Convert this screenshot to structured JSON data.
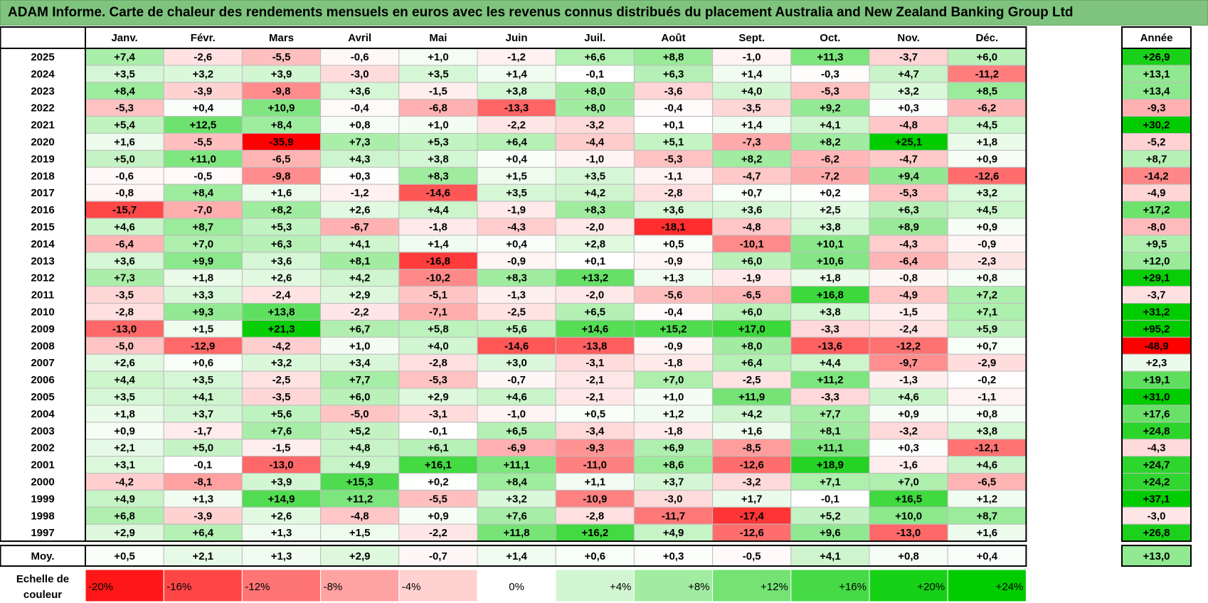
{
  "title": "ADAM Informe. Carte de chaleur des rendements mensuels en euros avec les revenus connus distribués du placement Australia and New Zealand Banking Group Ltd",
  "colors": {
    "negative_max": "#ff0000",
    "neutral": "#ffffff",
    "positive_max": "#00cc00",
    "title_bg": "#7ec47e"
  },
  "chart_data": {
    "type": "heatmap",
    "title": "ADAM Informe. Carte de chaleur des rendements mensuels en euros avec les revenus connus distribués du placement Australia and New Zealand Banking Group Ltd",
    "months": [
      "Janv.",
      "Févr.",
      "Mars",
      "Avril",
      "Mai",
      "Juin",
      "Juil.",
      "Août",
      "Sept.",
      "Oct.",
      "Nov.",
      "Déc."
    ],
    "year_column_label": "Année",
    "rows": [
      {
        "year": "2025",
        "values": [
          "+7,4",
          "-2,6",
          "-5,5",
          "-0,6",
          "+1,0",
          "-1,2",
          "+6,6",
          "+8,8",
          "-1,0",
          "+11,3",
          "-3,7",
          "+6,0"
        ],
        "annual": "+26,9"
      },
      {
        "year": "2024",
        "values": [
          "+3,5",
          "+3,2",
          "+3,9",
          "-3,0",
          "+3,5",
          "+1,4",
          "-0,1",
          "+6,3",
          "+1,4",
          "-0,3",
          "+4,7",
          "-11,2"
        ],
        "annual": "+13,1"
      },
      {
        "year": "2023",
        "values": [
          "+8,4",
          "-3,9",
          "-9,8",
          "+3,6",
          "-1,5",
          "+3,8",
          "+8,0",
          "-3,6",
          "+4,0",
          "-5,3",
          "+3,2",
          "+8,5"
        ],
        "annual": "+13,4"
      },
      {
        "year": "2022",
        "values": [
          "-5,3",
          "+0,4",
          "+10,9",
          "-0,4",
          "-6,8",
          "-13,3",
          "+8,0",
          "-0,4",
          "-3,5",
          "+9,2",
          "+0,3",
          "-6,2"
        ],
        "annual": "-9,3"
      },
      {
        "year": "2021",
        "values": [
          "+5,4",
          "+12,5",
          "+8,4",
          "+0,8",
          "+1,0",
          "-2,2",
          "-3,2",
          "+0,1",
          "+1,4",
          "+4,1",
          "-4,8",
          "+4,5"
        ],
        "annual": "+30,2"
      },
      {
        "year": "2020",
        "values": [
          "+1,6",
          "-5,5",
          "-35,9",
          "+7,3",
          "+5,3",
          "+6,4",
          "-4,4",
          "+5,1",
          "-7,3",
          "+8,2",
          "+25,1",
          "+1,8"
        ],
        "annual": "-5,2"
      },
      {
        "year": "2019",
        "values": [
          "+5,0",
          "+11,0",
          "-6,5",
          "+4,3",
          "+3,8",
          "+0,4",
          "-1,0",
          "-5,3",
          "+8,2",
          "-6,2",
          "-4,7",
          "+0,9"
        ],
        "annual": "+8,7"
      },
      {
        "year": "2018",
        "values": [
          "-0,6",
          "-0,5",
          "-9,8",
          "+0,3",
          "+8,3",
          "+1,5",
          "+3,5",
          "-1,1",
          "-4,7",
          "-7,2",
          "+9,4",
          "-12,6"
        ],
        "annual": "-14,2"
      },
      {
        "year": "2017",
        "values": [
          "-0,8",
          "+8,4",
          "+1,6",
          "-1,2",
          "-14,6",
          "+3,5",
          "+4,2",
          "-2,8",
          "+0,7",
          "+0,2",
          "-5,3",
          "+3,2"
        ],
        "annual": "-4,9"
      },
      {
        "year": "2016",
        "values": [
          "-15,7",
          "-7,0",
          "+8,2",
          "+2,6",
          "+4,4",
          "-1,9",
          "+8,3",
          "+3,6",
          "+3,6",
          "+2,5",
          "+6,3",
          "+4,5"
        ],
        "annual": "+17,2"
      },
      {
        "year": "2015",
        "values": [
          "+4,6",
          "+8,7",
          "+5,3",
          "-6,7",
          "-1,8",
          "-4,3",
          "-2,0",
          "-18,1",
          "-4,8",
          "+3,8",
          "+8,9",
          "+0,9"
        ],
        "annual": "-8,0"
      },
      {
        "year": "2014",
        "values": [
          "-6,4",
          "+7,0",
          "+6,3",
          "+4,1",
          "+1,4",
          "+0,4",
          "+2,8",
          "+0,5",
          "-10,1",
          "+10,1",
          "-4,3",
          "-0,9"
        ],
        "annual": "+9,5"
      },
      {
        "year": "2013",
        "values": [
          "+3,6",
          "+9,9",
          "+3,6",
          "+8,1",
          "-16,8",
          "-0,9",
          "+0,1",
          "-0,9",
          "+6,0",
          "+10,6",
          "-6,4",
          "-2,3"
        ],
        "annual": "+12,0"
      },
      {
        "year": "2012",
        "values": [
          "+7,3",
          "+1,8",
          "+2,6",
          "+4,2",
          "-10,2",
          "+8,3",
          "+13,2",
          "+1,3",
          "-1,9",
          "+1,8",
          "-0,8",
          "+0,8"
        ],
        "annual": "+29,1"
      },
      {
        "year": "2011",
        "values": [
          "-3,5",
          "+3,3",
          "-2,4",
          "+2,9",
          "-5,1",
          "-1,3",
          "-2,0",
          "-5,6",
          "-6,5",
          "+16,8",
          "-4,9",
          "+7,2"
        ],
        "annual": "-3,7"
      },
      {
        "year": "2010",
        "values": [
          "-2,8",
          "+9,3",
          "+13,8",
          "-2,2",
          "-7,1",
          "-2,5",
          "+6,5",
          "-0,4",
          "+6,0",
          "+3,8",
          "-1,5",
          "+7,1"
        ],
        "annual": "+31,2"
      },
      {
        "year": "2009",
        "values": [
          "-13,0",
          "+1,5",
          "+21,3",
          "+6,7",
          "+5,8",
          "+5,6",
          "+14,6",
          "+15,2",
          "+17,0",
          "-3,3",
          "-2,4",
          "+5,9"
        ],
        "annual": "+95,2"
      },
      {
        "year": "2008",
        "values": [
          "-5,0",
          "-12,9",
          "-4,2",
          "+1,0",
          "+4,0",
          "-14,6",
          "-13,8",
          "-0,9",
          "+8,0",
          "-13,6",
          "-12,2",
          "+0,7"
        ],
        "annual": "-48,9"
      },
      {
        "year": "2007",
        "values": [
          "+2,6",
          "+0,6",
          "+3,2",
          "+3,4",
          "-2,8",
          "+3,0",
          "-3,1",
          "-1,8",
          "+6,4",
          "+4,4",
          "-9,7",
          "-2,9"
        ],
        "annual": "+2,3"
      },
      {
        "year": "2006",
        "values": [
          "+4,4",
          "+3,5",
          "-2,5",
          "+7,7",
          "-5,3",
          "-0,7",
          "-2,1",
          "+7,0",
          "-2,5",
          "+11,2",
          "-1,3",
          "-0,2"
        ],
        "annual": "+19,1"
      },
      {
        "year": "2005",
        "values": [
          "+3,5",
          "+4,1",
          "-3,5",
          "+6,0",
          "+2,9",
          "+4,6",
          "-2,1",
          "+1,0",
          "+11,9",
          "-3,3",
          "+4,6",
          "-1,1"
        ],
        "annual": "+31,0"
      },
      {
        "year": "2004",
        "values": [
          "+1,8",
          "+3,7",
          "+5,6",
          "-5,0",
          "-3,1",
          "-1,0",
          "+0,5",
          "+1,2",
          "+4,2",
          "+7,7",
          "+0,9",
          "+0,8"
        ],
        "annual": "+17,6"
      },
      {
        "year": "2003",
        "values": [
          "+0,9",
          "-1,7",
          "+7,6",
          "+5,2",
          "-0,1",
          "+6,5",
          "-3,4",
          "-1,8",
          "+1,6",
          "+8,1",
          "-3,2",
          "+3,8"
        ],
        "annual": "+24,8"
      },
      {
        "year": "2002",
        "values": [
          "+2,1",
          "+5,0",
          "-1,5",
          "+4,8",
          "+6,1",
          "-6,9",
          "-9,3",
          "+6,9",
          "-8,5",
          "+11,1",
          "+0,3",
          "-12,1"
        ],
        "annual": "-4,3"
      },
      {
        "year": "2001",
        "values": [
          "+3,1",
          "-0,1",
          "-13,0",
          "+4,9",
          "+16,1",
          "+11,1",
          "-11,0",
          "+8,6",
          "-12,6",
          "+18,9",
          "-1,6",
          "+4,6"
        ],
        "annual": "+24,7"
      },
      {
        "year": "2000",
        "values": [
          "-4,2",
          "-8,1",
          "+3,9",
          "+15,3",
          "+0,2",
          "+8,4",
          "+1,1",
          "+3,7",
          "-3,2",
          "+7,1",
          "+7,0",
          "-6,5"
        ],
        "annual": "+24,2"
      },
      {
        "year": "1999",
        "values": [
          "+4,9",
          "+1,3",
          "+14,9",
          "+11,2",
          "-5,5",
          "+3,2",
          "-10,9",
          "-3,0",
          "+1,7",
          "-0,1",
          "+16,5",
          "+1,2"
        ],
        "annual": "+37,1"
      },
      {
        "year": "1998",
        "values": [
          "+6,8",
          "-3,9",
          "+2,6",
          "-4,8",
          "+0,9",
          "+7,6",
          "-2,8",
          "-11,7",
          "-17,4",
          "+5,2",
          "+10,0",
          "+8,7"
        ],
        "annual": "-3,0"
      },
      {
        "year": "1997",
        "values": [
          "+2,9",
          "+6,4",
          "+1,3",
          "+1,5",
          "-2,2",
          "+11,8",
          "+16,2",
          "+4,9",
          "-12,6",
          "+9,6",
          "-13,0",
          "+1,6"
        ],
        "annual": "+26,8"
      }
    ],
    "average": {
      "label": "Moy.",
      "values": [
        "+0,5",
        "+2,1",
        "+1,3",
        "+2,9",
        "-0,7",
        "+1,4",
        "+0,6",
        "+0,3",
        "-0,5",
        "+4,1",
        "+0,8",
        "+0,4"
      ],
      "annual": "+13,0"
    },
    "scale": {
      "label_line1": "Echelle de",
      "label_line2": "couleur",
      "steps": [
        {
          "label": "-20%",
          "value": -20
        },
        {
          "label": "-16%",
          "value": -16
        },
        {
          "label": "-12%",
          "value": -12
        },
        {
          "label": "-8%",
          "value": -8
        },
        {
          "label": "-4%",
          "value": -4
        },
        {
          "label": "0%",
          "value": 0
        },
        {
          "label": "+4%",
          "value": 4
        },
        {
          "label": "+8%",
          "value": 8
        },
        {
          "label": "+12%",
          "value": 12
        },
        {
          "label": "+16%",
          "value": 16
        },
        {
          "label": "+20%",
          "value": 20
        },
        {
          "label": "+24%",
          "value": 24
        }
      ]
    }
  }
}
